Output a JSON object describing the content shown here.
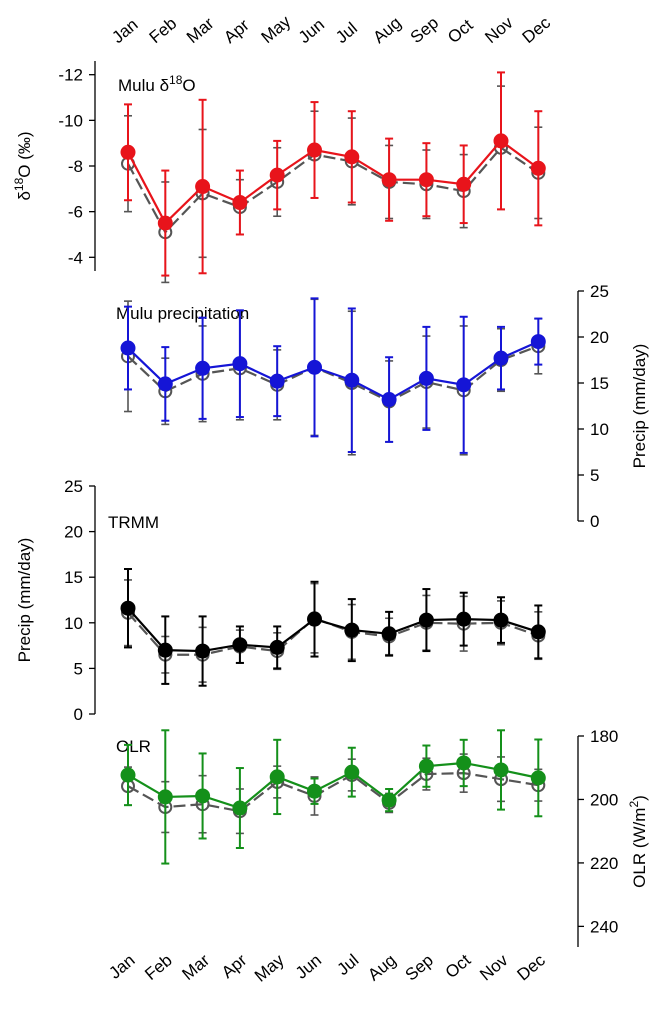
{
  "chart_data": [
    {
      "type": "errorbar-line",
      "title": [
        "Mulu δ",
        "18",
        "O"
      ],
      "ylabel": [
        "δ",
        "18",
        "O (‰)"
      ],
      "yaxis_side": "left",
      "categories": [
        "Jan",
        "Feb",
        "Mar",
        "Apr",
        "May",
        "Jun",
        "Jul",
        "Aug",
        "Sep",
        "Oct",
        "Nov",
        "Dec"
      ],
      "ylim": [
        -3.4,
        -12.6
      ],
      "yticks": [
        -12,
        -10,
        -8,
        -6,
        -4
      ],
      "series": [
        {
          "color": "#555555",
          "style": "dashed",
          "marker": "open",
          "values": [
            -8.1,
            -5.1,
            -6.8,
            -6.2,
            -7.3,
            -8.5,
            -8.2,
            -7.3,
            -7.2,
            -6.9,
            -8.8,
            -7.7
          ],
          "errors": [
            2.1,
            2.2,
            2.8,
            1.2,
            1.5,
            1.9,
            1.9,
            1.6,
            1.5,
            1.6,
            2.7,
            2.0
          ]
        },
        {
          "color": "#e8141b",
          "style": "solid",
          "marker": "filled",
          "values": [
            -8.6,
            -5.5,
            -7.1,
            -6.4,
            -7.6,
            -8.7,
            -8.4,
            -7.4,
            -7.4,
            -7.2,
            -9.1,
            -7.9
          ],
          "errors": [
            2.1,
            2.3,
            3.8,
            1.4,
            1.5,
            2.1,
            2.0,
            1.8,
            1.6,
            1.7,
            3.0,
            2.5
          ]
        }
      ]
    },
    {
      "type": "errorbar-line",
      "title": [
        "Mulu precipitation"
      ],
      "ylabel": [
        "Precip (mm/day)"
      ],
      "yaxis_side": "right",
      "ylim": [
        0,
        25
      ],
      "yticks": [
        0,
        5,
        10,
        15,
        20,
        25
      ],
      "series": [
        {
          "color": "#555555",
          "style": "dashed",
          "marker": "open",
          "values": [
            17.9,
            14.1,
            16.0,
            16.6,
            14.8,
            16.7,
            15.0,
            13.0,
            15.1,
            14.2,
            17.5,
            19.0
          ],
          "errors": [
            6.0,
            3.6,
            5.2,
            5.6,
            3.8,
            7.4,
            7.8,
            4.4,
            5.0,
            7.0,
            3.4,
            3.0
          ]
        },
        {
          "color": "#1515d6",
          "style": "solid",
          "marker": "filled",
          "values": [
            18.8,
            14.9,
            16.6,
            17.1,
            15.2,
            16.7,
            15.3,
            13.2,
            15.5,
            14.8,
            17.7,
            19.5
          ],
          "errors": [
            4.5,
            4.0,
            5.5,
            5.8,
            3.8,
            7.5,
            7.8,
            4.6,
            5.6,
            7.4,
            3.4,
            2.5
          ]
        }
      ]
    },
    {
      "type": "errorbar-line",
      "title": [
        "TRMM"
      ],
      "ylabel": [
        "Precip (mm/day)"
      ],
      "yaxis_side": "left",
      "ylim": [
        0,
        25
      ],
      "yticks": [
        0,
        5,
        10,
        15,
        20,
        25
      ],
      "series": [
        {
          "color": "#555555",
          "style": "dashed",
          "marker": "open",
          "values": [
            11.1,
            6.5,
            6.5,
            7.4,
            6.9,
            10.5,
            9.0,
            8.5,
            10.0,
            9.9,
            10.0,
            8.6
          ],
          "errors": [
            3.6,
            2.0,
            3.0,
            1.8,
            2.0,
            3.8,
            3.0,
            2.0,
            3.0,
            3.0,
            2.4,
            2.6
          ]
        },
        {
          "color": "#000000",
          "style": "solid",
          "marker": "filled",
          "values": [
            11.6,
            7.0,
            6.9,
            7.6,
            7.3,
            10.4,
            9.2,
            8.8,
            10.3,
            10.4,
            10.3,
            9.0
          ],
          "errors": [
            4.3,
            3.7,
            3.8,
            2.0,
            2.3,
            4.1,
            3.4,
            2.4,
            3.4,
            2.9,
            2.5,
            2.9
          ]
        }
      ]
    },
    {
      "type": "errorbar-line",
      "title": [
        "OLR"
      ],
      "ylabel": [
        "OLR (W/m",
        "2",
        ")"
      ],
      "yaxis_side": "right",
      "categories": [
        "Jan",
        "Feb",
        "Mar",
        "Apr",
        "May",
        "Jun",
        "Jul",
        "Aug",
        "Sep",
        "Oct",
        "Nov",
        "Dec"
      ],
      "ylim": [
        246.5,
        180
      ],
      "yticks": [
        180,
        200,
        220,
        240
      ],
      "series": [
        {
          "color": "#555555",
          "style": "dashed",
          "marker": "open",
          "values": [
            195.8,
            202.4,
            201.5,
            203.7,
            194.5,
            198.9,
            192.3,
            201.1,
            192.0,
            191.7,
            193.6,
            195.5
          ],
          "errors": [
            6,
            8,
            9,
            7,
            5,
            6,
            5,
            3,
            5,
            6,
            7,
            5
          ]
        },
        {
          "color": "#14901a",
          "style": "solid",
          "marker": "filled",
          "values": [
            192.3,
            199.2,
            198.9,
            202.7,
            192.9,
            197.4,
            191.4,
            200.2,
            189.5,
            188.5,
            190.7,
            193.2
          ],
          "errors": [
            9.5,
            21,
            13.4,
            12.6,
            11.7,
            4,
            7.7,
            3.5,
            6.5,
            7.3,
            12.5,
            12.1
          ]
        }
      ]
    }
  ]
}
